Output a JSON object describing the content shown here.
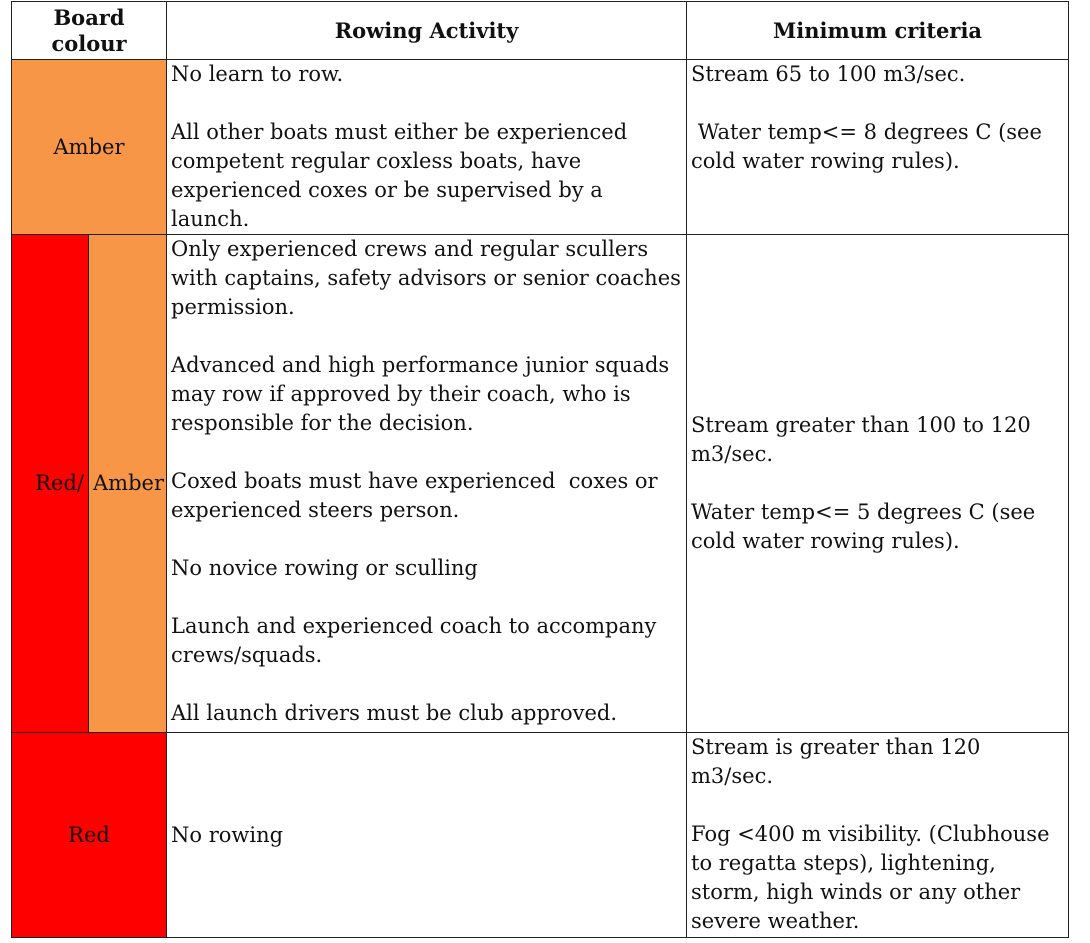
{
  "header": {
    "board_colour": "Board colour",
    "rowing_activity": "Rowing Activity",
    "minimum_criteria": "Minimum criteria"
  },
  "colors": {
    "amber": "#f79646",
    "red": "#ff0000"
  },
  "rows": [
    {
      "board_colour": "Amber",
      "activity": [
        "No learn to row.",
        "All other boats must either be experienced competent regular coxless boats, have experienced coxes or be supervised by a launch."
      ],
      "criteria": [
        "Stream 65 to 100 m3/sec.",
        " Water temp<= 8 degrees C (see cold water rowing rules)."
      ]
    },
    {
      "board_colour_left": "Red/",
      "board_colour_right": "Amber",
      "activity": [
        "Only experienced crews and regular scullers with captains, safety advisors or senior coaches permission.",
        "Advanced and high performance junior squads may row if approved by their coach, who is responsible for the decision.",
        "Coxed boats must have experienced  coxes or experienced steers person.",
        "No novice rowing or sculling",
        "Launch and experienced coach to accompany crews/squads.",
        "All launch drivers must be club approved."
      ],
      "criteria": [
        "Stream greater than 100 to 120 m3/sec.",
        "Water temp<= 5 degrees C (see cold water rowing rules)."
      ]
    },
    {
      "board_colour": "Red",
      "activity": [
        "No rowing"
      ],
      "criteria": [
        "Stream is greater than 120 m3/sec.",
        "Fog <400 m visibility. (Clubhouse to regatta steps), lightening, storm, high winds or any other severe weather."
      ]
    }
  ]
}
